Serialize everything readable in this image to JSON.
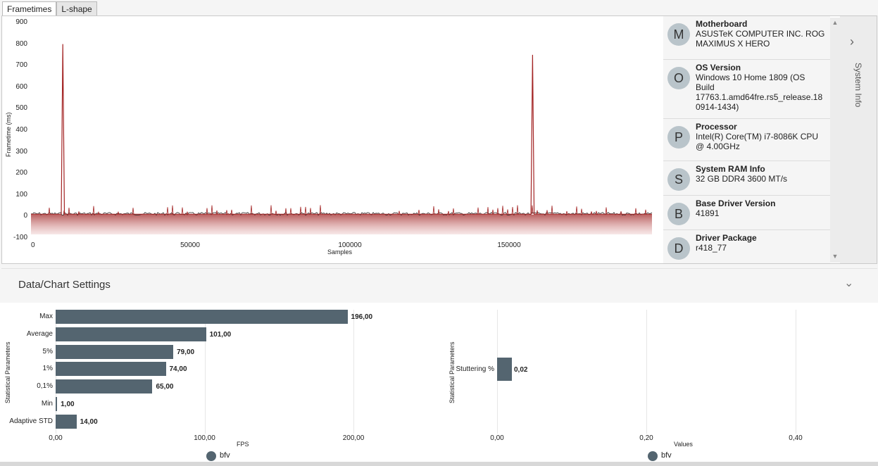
{
  "tabs": [
    "Frametimes",
    "L-shape"
  ],
  "frametime_chart": {
    "ylabel": "Frametime (ms)",
    "xlabel": "Samples",
    "yticks": [
      "900",
      "800",
      "700",
      "600",
      "500",
      "400",
      "300",
      "200",
      "100",
      "0",
      "-100"
    ],
    "xticks": [
      "0",
      "50000",
      "100000",
      "150000"
    ]
  },
  "chart_data": [
    {
      "type": "line",
      "xlabel": "Samples",
      "ylabel": "Frametime (ms)",
      "xlim": [
        0,
        195000
      ],
      "ylim": [
        -100,
        900
      ],
      "series": [
        {
          "color": "#a32424",
          "x": [
            0,
            9500,
            10000,
            10500,
            157000,
            157500,
            158000,
            195000
          ],
          "values": [
            10,
            10,
            800,
            10,
            10,
            750,
            10,
            10
          ]
        }
      ]
    },
    {
      "type": "bar",
      "orientation": "horizontal",
      "categories": [
        "Max",
        "Average",
        "5%",
        "1%",
        "0,1%",
        "Min",
        "Adaptive STD"
      ],
      "series": [
        {
          "name": "bfv",
          "values": [
            196,
            101,
            79,
            74,
            65,
            1,
            14
          ]
        }
      ],
      "xlabel": "FPS",
      "ylabel": "Statistical Parameters",
      "xlim": [
        0,
        200
      ]
    },
    {
      "type": "bar",
      "orientation": "horizontal",
      "categories": [
        "Stuttering %"
      ],
      "series": [
        {
          "name": "bfv",
          "values": [
            0.02
          ]
        }
      ],
      "xlabel": "Values",
      "ylabel": "Statistical Parameters",
      "xlim": [
        0,
        0.4
      ]
    }
  ],
  "system_info": {
    "label": "System Info",
    "items": [
      {
        "initial": "M",
        "title": "Motherboard",
        "value": "ASUSTeK COMPUTER INC. ROG MAXIMUS X HERO"
      },
      {
        "initial": "O",
        "title": "OS Version",
        "value": "Windows 10 Home 1809 (OS Build 17763.1.amd64fre.rs5_release.180914-1434)"
      },
      {
        "initial": "P",
        "title": "Processor",
        "value": "Intel(R) Core(TM) i7-8086K CPU @ 4.00GHz"
      },
      {
        "initial": "S",
        "title": "System RAM Info",
        "value": "32 GB DDR4 3600 MT/s"
      },
      {
        "initial": "B",
        "title": "Base Driver Version",
        "value": "41891"
      },
      {
        "initial": "D",
        "title": "Driver Package",
        "value": "r418_77"
      }
    ]
  },
  "settings": {
    "title": "Data/Chart Settings"
  },
  "fps_chart": {
    "ylabel": "Statistical Parameters",
    "xlabel": "FPS",
    "xticks": [
      "0,00",
      "100,00",
      "200,00"
    ],
    "value_labels": [
      "196,00",
      "101,00",
      "79,00",
      "74,00",
      "65,00",
      "1,00",
      "14,00"
    ],
    "legend": "bfv"
  },
  "stutter_chart": {
    "ylabel": "Statistical Parameters",
    "xlabel": "Values",
    "xticks": [
      "0,00",
      "0,20",
      "0,40"
    ],
    "category": "Stuttering %",
    "value_label": "0,02",
    "legend": "bfv"
  }
}
